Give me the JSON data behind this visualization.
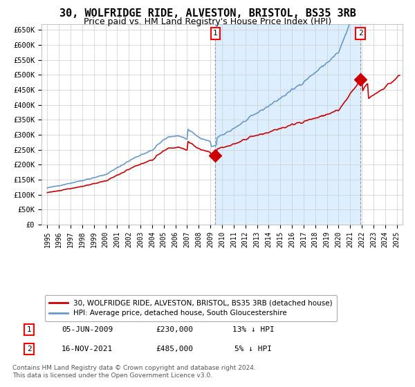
{
  "title": "30, WOLFRIDGE RIDE, ALVESTON, BRISTOL, BS35 3RB",
  "subtitle": "Price paid vs. HM Land Registry's House Price Index (HPI)",
  "title_fontsize": 11,
  "subtitle_fontsize": 9,
  "bg_color": "#ffffff",
  "grid_color": "#cccccc",
  "hpi_color": "#6699cc",
  "price_color": "#cc0000",
  "shade_color": "#ddeeff",
  "ylim": [
    0,
    670000
  ],
  "yticks": [
    0,
    50000,
    100000,
    150000,
    200000,
    250000,
    300000,
    350000,
    400000,
    450000,
    500000,
    550000,
    600000,
    650000
  ],
  "ytick_labels": [
    "£0",
    "£50K",
    "£100K",
    "£150K",
    "£200K",
    "£250K",
    "£300K",
    "£350K",
    "£400K",
    "£450K",
    "£500K",
    "£550K",
    "£600K",
    "£650K"
  ],
  "xlim_start": 1994.5,
  "xlim_end": 2025.5,
  "xticks": [
    1995,
    1996,
    1997,
    1998,
    1999,
    2000,
    2001,
    2002,
    2003,
    2004,
    2005,
    2006,
    2007,
    2008,
    2009,
    2010,
    2011,
    2012,
    2013,
    2014,
    2015,
    2016,
    2017,
    2018,
    2019,
    2020,
    2021,
    2022,
    2023,
    2024,
    2025
  ],
  "sale1_x": 2009.43,
  "sale1_y": 230000,
  "sale2_x": 2021.88,
  "sale2_y": 485000,
  "legend_line1": "30, WOLFRIDGE RIDE, ALVESTON, BRISTOL, BS35 3RB (detached house)",
  "legend_line2": "HPI: Average price, detached house, South Gloucestershire",
  "note1_date": "05-JUN-2009",
  "note1_price": "£230,000",
  "note1_pct": "13% ↓ HPI",
  "note2_date": "16-NOV-2021",
  "note2_price": "£485,000",
  "note2_pct": "5% ↓ HPI",
  "footer": "Contains HM Land Registry data © Crown copyright and database right 2024.\nThis data is licensed under the Open Government Licence v3.0."
}
